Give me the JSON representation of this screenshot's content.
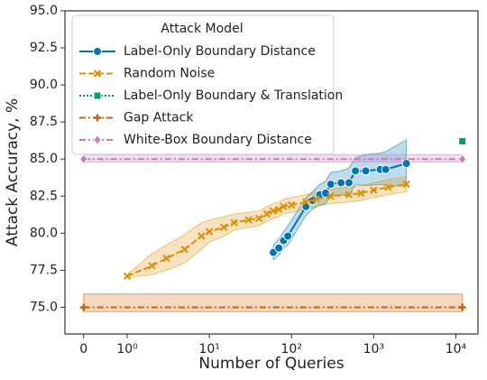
{
  "chart_data": {
    "type": "line",
    "xlabel": "Number of Queries",
    "ylabel": "Attack Accuracy, %",
    "xscale": "symlog",
    "linthresh": 1,
    "linscale": 0.53,
    "xlim": [
      -0.43,
      18600
    ],
    "ylim": [
      73.2,
      95.0
    ],
    "xticks": [
      0,
      {
        "value": 1,
        "label": "10⁰"
      },
      {
        "value": 10,
        "label": "10¹"
      },
      {
        "value": 100,
        "label": "10²"
      },
      {
        "value": 1000,
        "label": "10³"
      },
      {
        "value": 10000,
        "label": "10⁴"
      }
    ],
    "yticks": [
      {
        "value": 75,
        "label": "75.0"
      },
      77.5,
      {
        "value": 80,
        "label": "80.0"
      },
      82.5,
      {
        "value": 85,
        "label": "85.0"
      },
      87.5,
      {
        "value": 90,
        "label": "90.0"
      },
      92.5,
      {
        "value": 95,
        "label": "95.0"
      }
    ],
    "legend_title": "Attack Model",
    "legend": "upper left",
    "series": [
      {
        "name": "Label-Only Boundary Distance",
        "color": "#0173b2",
        "marker": "circle",
        "linestyle": "solid",
        "x": [
          60,
          70,
          80,
          90,
          150,
          180,
          220,
          260,
          300,
          400,
          500,
          600,
          800,
          1200,
          1400,
          2500
        ],
        "values": [
          78.7,
          79.0,
          79.5,
          79.8,
          81.8,
          82.2,
          82.6,
          82.7,
          83.3,
          83.4,
          83.4,
          84.2,
          84.2,
          84.3,
          84.3,
          84.7
        ],
        "lower": [
          78.2,
          78.5,
          79.0,
          79.2,
          81.2,
          81.6,
          81.9,
          82.0,
          82.5,
          82.6,
          82.5,
          83.3,
          83.2,
          83.3,
          83.2,
          83.2
        ],
        "upper": [
          79.2,
          79.6,
          80.1,
          80.5,
          82.4,
          82.8,
          83.3,
          83.5,
          84.1,
          84.2,
          84.4,
          85.1,
          85.3,
          85.4,
          85.5,
          86.3
        ]
      },
      {
        "name": "Random Noise",
        "color": "#de8f05",
        "marker": "x",
        "linestyle": "dashed",
        "x": [
          1,
          2,
          3,
          5,
          8,
          10,
          15,
          20,
          30,
          40,
          50,
          60,
          70,
          80,
          100,
          150,
          200,
          300,
          500,
          700,
          1000,
          1500,
          2500
        ],
        "values": [
          77.1,
          77.8,
          78.3,
          78.9,
          79.8,
          80.1,
          80.4,
          80.7,
          80.9,
          81.0,
          81.3,
          81.5,
          81.6,
          81.8,
          81.9,
          82.1,
          82.3,
          82.5,
          82.6,
          82.7,
          82.9,
          83.1,
          83.3
        ],
        "lower": [
          77.0,
          77.2,
          77.5,
          78.0,
          78.9,
          79.4,
          79.8,
          80.2,
          80.4,
          80.5,
          80.8,
          81.0,
          81.1,
          81.3,
          81.4,
          81.6,
          81.8,
          82.0,
          82.1,
          82.2,
          82.4,
          82.6,
          82.8
        ],
        "upper": [
          77.2,
          78.6,
          79.2,
          79.9,
          80.7,
          80.9,
          81.1,
          81.3,
          81.4,
          81.5,
          81.8,
          82.0,
          82.1,
          82.3,
          82.4,
          82.6,
          82.8,
          83.0,
          83.1,
          83.2,
          83.4,
          83.6,
          83.8
        ]
      },
      {
        "name": "Label-Only Boundary & Translation",
        "color": "#029e73",
        "marker": "square",
        "linestyle": "dotted",
        "x": [
          12000
        ],
        "values": [
          86.2
        ]
      },
      {
        "name": "Gap Attack",
        "color": "#d55e00",
        "marker": "plus",
        "linestyle": "dashdot",
        "x": [
          0,
          12000
        ],
        "values": [
          75.0,
          75.0
        ],
        "lower": [
          74.7,
          74.7
        ],
        "upper": [
          75.9,
          75.9
        ]
      },
      {
        "name": "White-Box Boundary Distance",
        "color": "#cc78bc",
        "marker": "diamond",
        "linestyle": "dashdot",
        "x": [
          0,
          12000
        ],
        "values": [
          85.0,
          85.0
        ],
        "lower": [
          84.8,
          84.8
        ],
        "upper": [
          85.3,
          85.3
        ]
      }
    ]
  }
}
